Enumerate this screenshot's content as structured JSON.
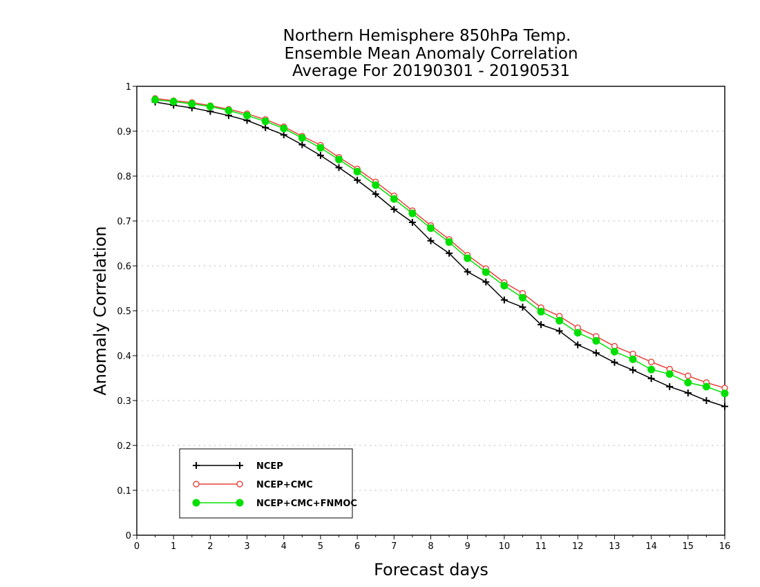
{
  "chart_data": {
    "type": "line",
    "title": [
      "Northern Hemisphere 850hPa Temp.",
      "Ensemble Mean Anomaly Correlation",
      "Average For 20190301 - 20190531"
    ],
    "xlabel": "Forecast days",
    "ylabel": "Anomaly Correlation",
    "xlim": [
      0,
      16
    ],
    "ylim": [
      0,
      1
    ],
    "xticks": [
      "0",
      "1",
      "2",
      "3",
      "4",
      "5",
      "6",
      "7",
      "8",
      "9",
      "10",
      "11",
      "12",
      "13",
      "14",
      "15",
      "16"
    ],
    "yticks": [
      "0",
      "0.1",
      "0.2",
      "0.3",
      "0.4",
      "0.5",
      "0.6",
      "0.7",
      "0.8",
      "0.9",
      "1"
    ],
    "grid": true,
    "legend_position": "bottom-left",
    "x": [
      0.5,
      1,
      1.5,
      2,
      2.5,
      3,
      3.5,
      4,
      4.5,
      5,
      5.5,
      6,
      6.5,
      7,
      7.5,
      8,
      8.5,
      9,
      9.5,
      10,
      10.5,
      11,
      11.5,
      12,
      12.5,
      13,
      13.5,
      14,
      14.5,
      15,
      15.5,
      16
    ],
    "series": [
      {
        "name": "NCEP",
        "color": "#000000",
        "marker": "plus",
        "values": [
          0.965,
          0.958,
          0.952,
          0.944,
          0.935,
          0.924,
          0.908,
          0.892,
          0.87,
          0.846,
          0.819,
          0.791,
          0.76,
          0.726,
          0.697,
          0.656,
          0.628,
          0.587,
          0.564,
          0.524,
          0.508,
          0.469,
          0.455,
          0.424,
          0.406,
          0.385,
          0.368,
          0.349,
          0.331,
          0.317,
          0.3,
          0.287
        ]
      },
      {
        "name": "NCEP+CMC",
        "color": "#e8403a",
        "marker": "open-circle",
        "values": [
          0.973,
          0.968,
          0.964,
          0.957,
          0.949,
          0.939,
          0.926,
          0.91,
          0.889,
          0.869,
          0.842,
          0.816,
          0.787,
          0.756,
          0.723,
          0.69,
          0.659,
          0.624,
          0.594,
          0.563,
          0.539,
          0.507,
          0.488,
          0.462,
          0.443,
          0.421,
          0.404,
          0.386,
          0.37,
          0.355,
          0.34,
          0.328
        ]
      },
      {
        "name": "NCEP+CMC+FNMOC",
        "color": "#00e000",
        "marker": "filled-circle",
        "values": [
          0.97,
          0.966,
          0.961,
          0.955,
          0.946,
          0.935,
          0.922,
          0.906,
          0.885,
          0.863,
          0.837,
          0.81,
          0.78,
          0.749,
          0.717,
          0.684,
          0.653,
          0.617,
          0.586,
          0.556,
          0.529,
          0.498,
          0.478,
          0.451,
          0.433,
          0.409,
          0.392,
          0.369,
          0.359,
          0.34,
          0.331,
          0.316
        ]
      }
    ]
  }
}
